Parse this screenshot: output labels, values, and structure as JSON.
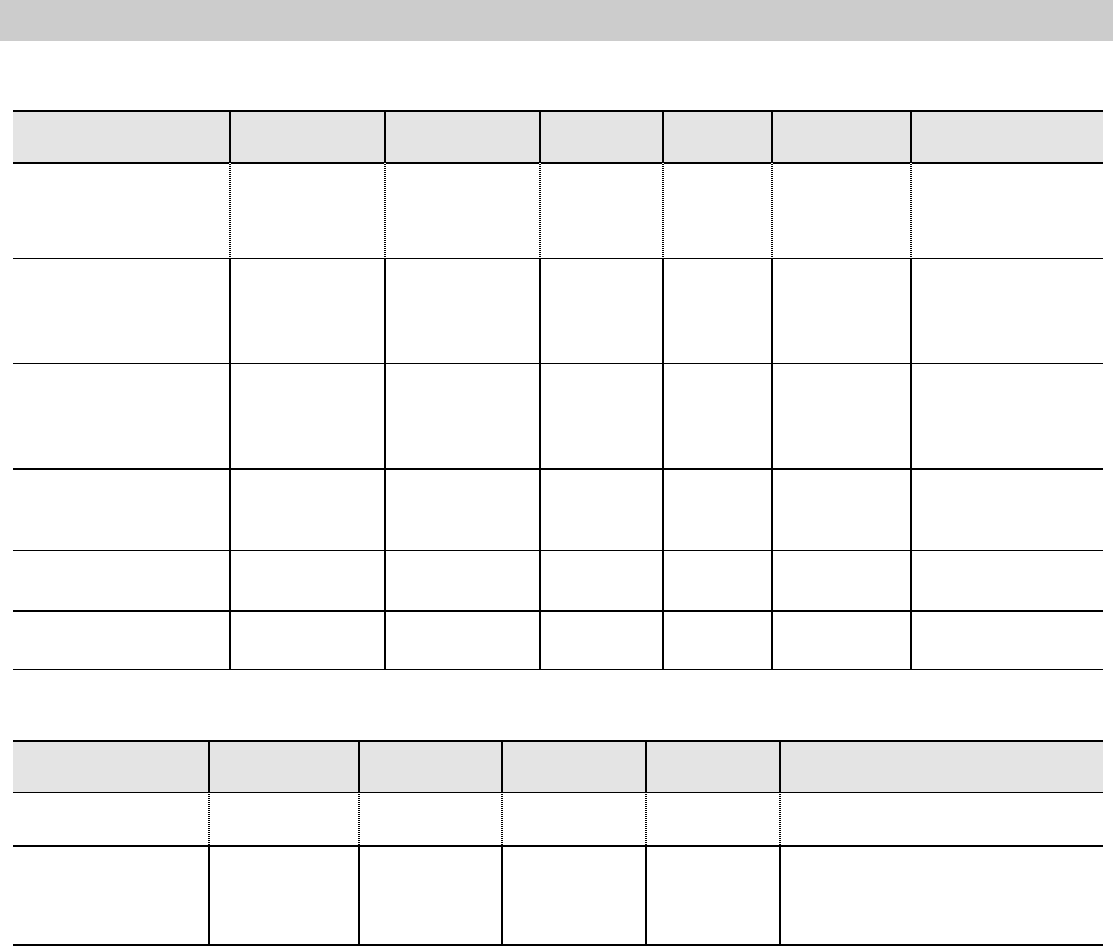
{
  "colors": {
    "top_bar": "#cccccc",
    "header_fill": "#e4e4e4",
    "grid_lines": "#000000"
  },
  "tables": [
    {
      "columns": 7,
      "body_rows": 6,
      "cells": "empty"
    },
    {
      "columns": 6,
      "body_rows": 2,
      "cells": "empty"
    }
  ]
}
